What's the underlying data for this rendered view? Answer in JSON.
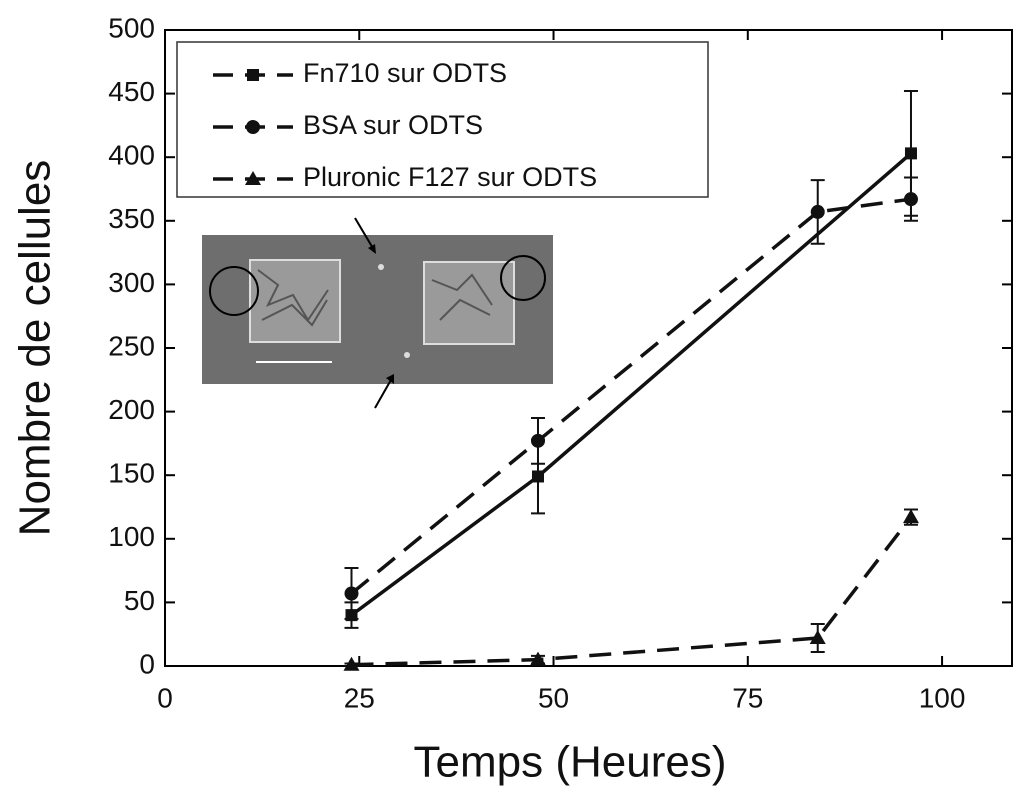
{
  "chart_data": {
    "type": "line",
    "xlabel": "Temps (Heures)",
    "ylabel": "Nombre de cellules",
    "xlim": [
      0,
      109
    ],
    "ylim": [
      0,
      500
    ],
    "xticks": [
      0,
      25,
      50,
      75,
      100
    ],
    "yticks": [
      0,
      50,
      100,
      150,
      200,
      250,
      300,
      350,
      400,
      450,
      500
    ],
    "legend": "upper left",
    "series": [
      {
        "name": "Fn710 sur ODTS",
        "color": "#111111",
        "marker": "square",
        "dash": false,
        "x": [
          24,
          48,
          96
        ],
        "values": [
          40,
          149,
          403
        ],
        "errors": [
          10,
          29,
          49
        ]
      },
      {
        "name": "BSA sur ODTS",
        "color": "#111111",
        "marker": "circle",
        "dash": true,
        "x": [
          24,
          48,
          84,
          96
        ],
        "values": [
          57,
          177,
          357,
          367
        ],
        "errors": [
          20,
          18,
          25,
          17
        ]
      },
      {
        "name": "Pluronic F127 sur ODTS",
        "color": "#111111",
        "marker": "triangle",
        "dash": true,
        "x": [
          24,
          48,
          84,
          96
        ],
        "values": [
          1,
          5,
          22,
          117
        ],
        "errors": [
          1,
          3,
          11,
          6
        ]
      }
    ]
  }
}
